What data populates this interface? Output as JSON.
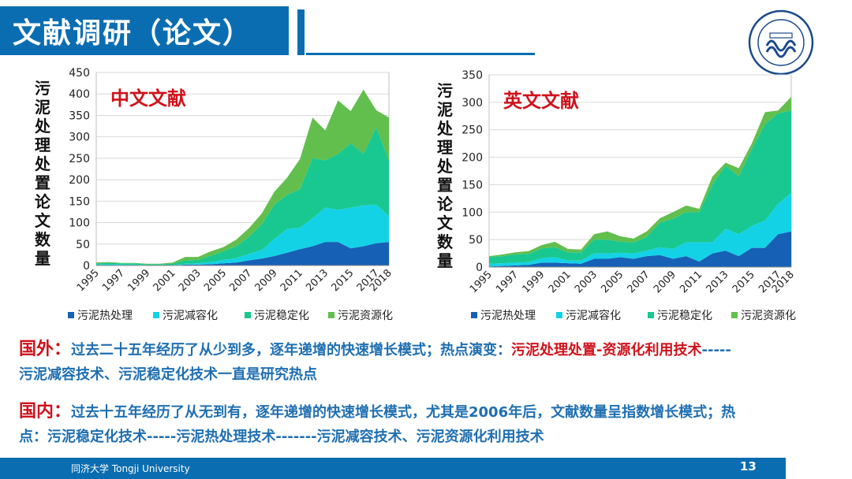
{
  "slide": {
    "title": "文献调研（论文）",
    "footer": "同济大学 Tongji University",
    "page_number": "13",
    "logo_text": "同 濟 大 學",
    "logo_year": "1907",
    "logo_name": "TONGJI UNIVERSITY"
  },
  "colors": {
    "primary": "#0b6db1",
    "red": "#d0121b",
    "text_blue": "#1f6fb2",
    "s1": "#1660b6",
    "s2": "#14d2e6",
    "s3": "#18c890",
    "s4": "#62bf4e"
  },
  "paragraphs": {
    "foreign_head": "国外：",
    "foreign_text": "过去二十五年经历了从少到多，逐年递增的快速增长模式；热点演变：",
    "foreign_red": "污泥处理处置-资源化利用技术",
    "foreign_tail": "-----",
    "foreign_line2": "污泥减容技术、污泥稳定化技术一直是研究热点",
    "domestic_head": "国内：",
    "domestic_text": "过去十五年经历了从无到有，逐年递增的快速增长模式，尤其是2006年后，文献数量呈指数增长模式；热",
    "domestic_line2": "点：污泥稳定化技术-----污泥热处理技术-------污泥减容技术、污泥资源化利用技术"
  },
  "chart_data": [
    {
      "type": "area",
      "stacked": true,
      "title": "中文文献",
      "ylabel": "污泥处理处置论文数量",
      "ylim": [
        0,
        450
      ],
      "yticks": [
        0,
        50,
        100,
        150,
        200,
        250,
        300,
        350,
        400,
        450
      ],
      "x": [
        1995,
        1996,
        1997,
        1998,
        1999,
        2000,
        2001,
        2002,
        2003,
        2004,
        2005,
        2006,
        2007,
        2008,
        2009,
        2010,
        2011,
        2012,
        2013,
        2014,
        2015,
        2016,
        2017,
        2018
      ],
      "xtick_labels": [
        "1995",
        "1997",
        "1999",
        "2001",
        "2003",
        "2005",
        "2007",
        "2009",
        "2011",
        "2013",
        "2015",
        "2017",
        "2018"
      ],
      "grid": true,
      "legend": "bottom",
      "series": [
        {
          "name": "污泥热处理",
          "values": [
            0,
            0,
            0,
            0,
            0,
            0,
            0,
            2,
            2,
            3,
            5,
            7,
            12,
            16,
            22,
            30,
            38,
            45,
            55,
            55,
            40,
            45,
            52,
            55
          ]
        },
        {
          "name": "污泥减容化",
          "values": [
            2,
            3,
            2,
            2,
            1,
            1,
            1,
            2,
            3,
            5,
            8,
            10,
            15,
            20,
            40,
            55,
            50,
            65,
            80,
            75,
            95,
            95,
            90,
            60
          ]
        },
        {
          "name": "污泥稳定化",
          "values": [
            3,
            3,
            3,
            3,
            2,
            2,
            3,
            8,
            8,
            15,
            20,
            28,
            40,
            60,
            80,
            80,
            90,
            140,
            110,
            130,
            150,
            120,
            180,
            130
          ]
        },
        {
          "name": "污泥资源化",
          "values": [
            2,
            2,
            1,
            1,
            1,
            1,
            3,
            8,
            7,
            10,
            10,
            15,
            20,
            25,
            30,
            40,
            70,
            95,
            70,
            125,
            75,
            150,
            40,
            100
          ]
        }
      ]
    },
    {
      "type": "area",
      "stacked": true,
      "title": "英文文献",
      "ylabel": "污泥处理处置论文数量",
      "ylim": [
        0,
        350
      ],
      "yticks": [
        0,
        50,
        100,
        150,
        200,
        250,
        300,
        350
      ],
      "x": [
        1995,
        1996,
        1997,
        1998,
        1999,
        2000,
        2001,
        2002,
        2003,
        2004,
        2005,
        2006,
        2007,
        2008,
        2009,
        2010,
        2011,
        2012,
        2013,
        2014,
        2015,
        2016,
        2017,
        2018
      ],
      "xtick_labels": [
        "1995",
        "1997",
        "1999",
        "2001",
        "2003",
        "2005",
        "2007",
        "2009",
        "2011",
        "2013",
        "2015",
        "2017",
        "2018"
      ],
      "grid": true,
      "legend": "bottom",
      "series": [
        {
          "name": "污泥热处理",
          "values": [
            1,
            2,
            3,
            4,
            8,
            8,
            7,
            6,
            15,
            15,
            18,
            15,
            20,
            22,
            15,
            20,
            10,
            25,
            30,
            20,
            35,
            35,
            60,
            65
          ]
        },
        {
          "name": "污泥减容化",
          "values": [
            5,
            5,
            5,
            5,
            8,
            10,
            5,
            6,
            10,
            10,
            8,
            10,
            10,
            14,
            18,
            25,
            35,
            20,
            40,
            40,
            40,
            50,
            55,
            70
          ]
        },
        {
          "name": "污泥稳定化",
          "values": [
            12,
            13,
            15,
            15,
            18,
            18,
            15,
            15,
            25,
            25,
            20,
            20,
            25,
            45,
            55,
            55,
            55,
            105,
            115,
            105,
            140,
            175,
            165,
            150
          ]
        },
        {
          "name": "污泥资源化",
          "values": [
            2,
            3,
            4,
            5,
            6,
            10,
            6,
            5,
            10,
            15,
            10,
            7,
            10,
            8,
            12,
            12,
            6,
            15,
            5,
            15,
            10,
            22,
            5,
            25
          ]
        }
      ]
    }
  ]
}
